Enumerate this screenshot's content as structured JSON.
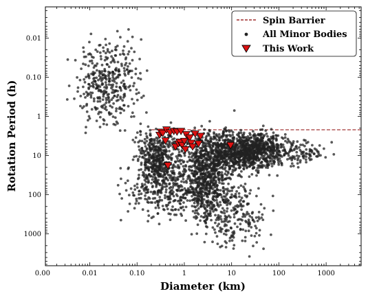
{
  "chart_data": {
    "type": "scatter",
    "xlabel": "Diameter (km)",
    "ylabel": "Rotation Period (h)",
    "x_scale": "log",
    "y_scale": "log",
    "y_inverted": true,
    "xlim": [
      0.00115,
      5500
    ],
    "ylim": [
      0.0016,
      6500
    ],
    "x_ticks": [
      {
        "value": 0.001,
        "label": "0.00"
      },
      {
        "value": 0.01,
        "label": "0.01"
      },
      {
        "value": 0.1,
        "label": "0.10"
      },
      {
        "value": 1,
        "label": "1"
      },
      {
        "value": 10,
        "label": "10"
      },
      {
        "value": 100,
        "label": "100"
      },
      {
        "value": 1000,
        "label": "1000"
      }
    ],
    "y_ticks": [
      {
        "value": 0.01,
        "label": "0.01"
      },
      {
        "value": 0.1,
        "label": "0.10"
      },
      {
        "value": 1,
        "label": "1"
      },
      {
        "value": 10,
        "label": "10"
      },
      {
        "value": 100,
        "label": "100"
      },
      {
        "value": 1000,
        "label": "1000"
      }
    ],
    "grid": false,
    "legend_position": "top-right",
    "legend": [
      {
        "label": "Spin Barrier",
        "marker": "dashed-line",
        "color": "#8b0000"
      },
      {
        "label": "All Minor Bodies",
        "marker": "dot",
        "color": "#222222"
      },
      {
        "label": "This Work",
        "marker": "triangle-down",
        "color": "#dd1111"
      }
    ],
    "series": [
      {
        "name": "Spin Barrier",
        "kind": "line",
        "style": "dashed",
        "color": "#8b0000",
        "x": [
          0.2,
          5500
        ],
        "y": [
          2.2,
          2.2
        ]
      },
      {
        "name": "All Minor Bodies",
        "kind": "scatter",
        "color": "#222222",
        "alpha": 0.75,
        "density_regions": [
          {
            "x_range": [
              0.005,
              0.12
            ],
            "y_range": [
              0.01,
              1.5
            ],
            "weight": 380
          },
          {
            "x_range": [
              0.1,
              0.8
            ],
            "y_range": [
              2.2,
              60
            ],
            "weight": 450
          },
          {
            "x_range": [
              0.8,
              10
            ],
            "y_range": [
              2.2,
              400
            ],
            "weight": 800
          },
          {
            "x_range": [
              3,
              150
            ],
            "y_range": [
              2.5,
              25
            ],
            "weight": 1100
          },
          {
            "x_range": [
              0.05,
              3
            ],
            "y_range": [
              15,
              400
            ],
            "weight": 300
          },
          {
            "x_range": [
              2,
              60
            ],
            "y_range": [
              40,
              2500
            ],
            "weight": 250
          },
          {
            "x_range": [
              100,
              1200
            ],
            "y_range": [
              4,
              20
            ],
            "weight": 90
          }
        ]
      },
      {
        "name": "This Work",
        "kind": "scatter",
        "marker": "triangle-down",
        "color": "#dd1111",
        "x": [
          0.3,
          0.32,
          0.35,
          0.4,
          0.42,
          0.45,
          0.5,
          0.6,
          0.65,
          0.7,
          0.75,
          0.8,
          0.85,
          0.9,
          1.0,
          1.05,
          1.1,
          1.3,
          1.4,
          1.5,
          1.7,
          2.0,
          2.2,
          9.5
        ],
        "y": [
          3.0,
          2.5,
          2.7,
          4.2,
          2.2,
          18.0,
          2.6,
          2.4,
          6.0,
          2.5,
          5.0,
          4.5,
          2.4,
          5.5,
          4.3,
          7.0,
          2.9,
          3.5,
          4.8,
          6.0,
          2.8,
          5.0,
          3.2,
          5.5
        ]
      }
    ]
  }
}
